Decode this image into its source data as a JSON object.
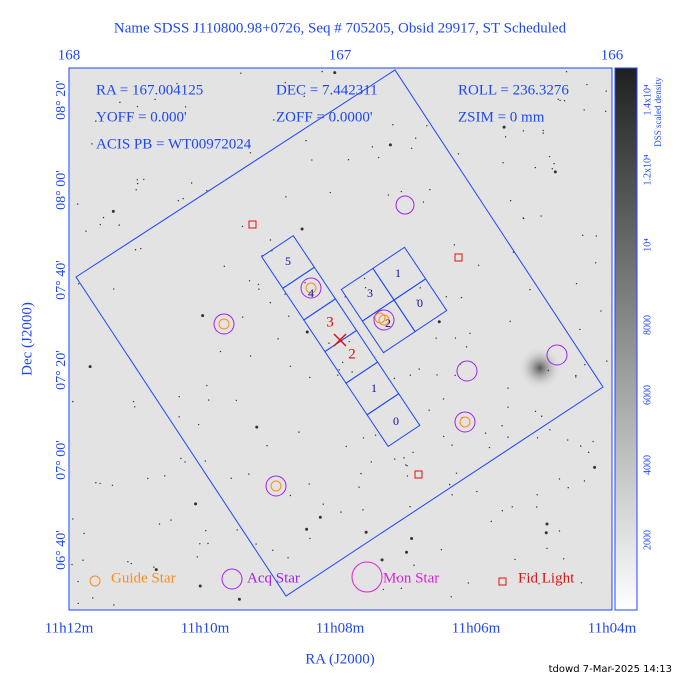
{
  "title": "Name SDSS J110800.98+0726, Seq # 705205, Obsid 29917, ST Scheduled",
  "top_axis": {
    "labels": [
      "168",
      "167",
      "166"
    ]
  },
  "info": {
    "ra": "RA = 167.004125",
    "dec": "DEC = 7.442311",
    "roll": "ROLL = 236.3276",
    "yoff": "YOFF = 0.000'",
    "zoff": "ZOFF = 0.0000'",
    "zsim": "ZSIM = 0 mm",
    "acis": "ACIS PB = WT00972024"
  },
  "left_axis": {
    "title": "Dec (J2000)",
    "labels": [
      "08° 20'",
      "08° 00'",
      "07° 40'",
      "07° 20'",
      "07° 00'",
      "06° 40'"
    ]
  },
  "bottom_axis": {
    "title": "RA (J2000)",
    "labels": [
      "11h12m",
      "11h10m",
      "11h08m",
      "11h06m",
      "11h04m"
    ]
  },
  "legend": [
    "Guide Star",
    "Acq Star",
    "Mon Star",
    "Fid Light"
  ],
  "colorbar": {
    "title": "DSS scaled density",
    "labels": [
      "2000",
      "4000",
      "6000",
      "8000",
      "10⁴",
      "1.2x10⁴",
      "1.4x10⁴"
    ]
  },
  "chips": {
    "s_array": [
      "5",
      "4",
      "3",
      "2",
      "1",
      "0"
    ],
    "i_array": [
      "1",
      "0",
      "3",
      "2"
    ]
  },
  "footer": "tdowd  7-Mar-2025 14:13"
}
